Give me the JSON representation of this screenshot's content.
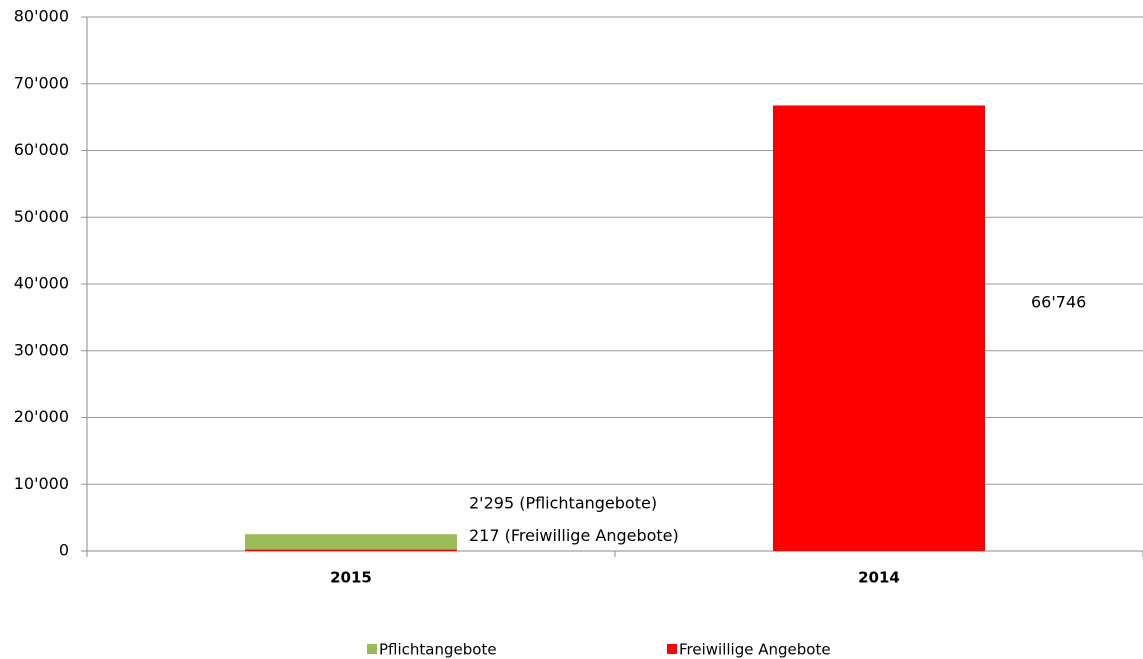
{
  "chart_data": {
    "type": "stacked_bar",
    "categories": [
      "2015",
      "2014"
    ],
    "series": [
      {
        "name": "Pflichtangebote",
        "color": "#9bbb59",
        "values": [
          2295,
          null
        ],
        "value_labels": [
          "2'295 (Pflichtangebote)",
          null
        ]
      },
      {
        "name": "Freiwillige Angebote",
        "color": "#ff0000",
        "values": [
          217,
          66746
        ],
        "value_labels": [
          "217 (Freiwillige Angebote)",
          "66'746"
        ]
      }
    ],
    "ylim": [
      0,
      80000
    ],
    "yticks": [
      0,
      {
        "value": 10000,
        "label": "10'000"
      },
      {
        "value": 20000,
        "label": "20'000"
      },
      {
        "value": 30000,
        "label": "30'000"
      },
      {
        "value": 40000,
        "label": "40'000"
      },
      {
        "value": 50000,
        "label": "50'000"
      },
      {
        "value": 60000,
        "label": "60'000"
      },
      {
        "value": 70000,
        "label": "70'000"
      },
      {
        "value": 80000,
        "label": "80'000"
      }
    ],
    "grid": true,
    "legend": "bottom"
  }
}
